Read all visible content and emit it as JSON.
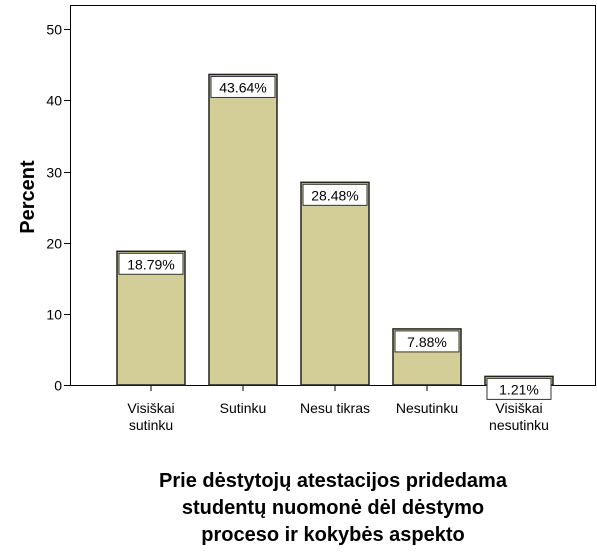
{
  "chart_data": {
    "type": "bar",
    "x_label": "Prie dėstytojų atestacijos pridedama\nstudentų nuomonė dėl dėstymo\nproceso ir kokybės aspekto",
    "y_label": "Percent",
    "categories": [
      "Visiškai\nsutinku",
      "Sutinku",
      "Nesu tikras",
      "Nesutinku",
      "Visiškai\nnesutinku"
    ],
    "values": [
      18.79,
      43.64,
      28.48,
      7.88,
      1.21
    ],
    "value_labels": [
      "18.79%",
      "43.64%",
      "28.48%",
      "7.88%",
      "1.21%"
    ],
    "color": "#d3ce97",
    "ylim": [
      0,
      53.4
    ],
    "yticks": [
      0,
      10,
      20,
      30,
      40,
      50
    ]
  }
}
